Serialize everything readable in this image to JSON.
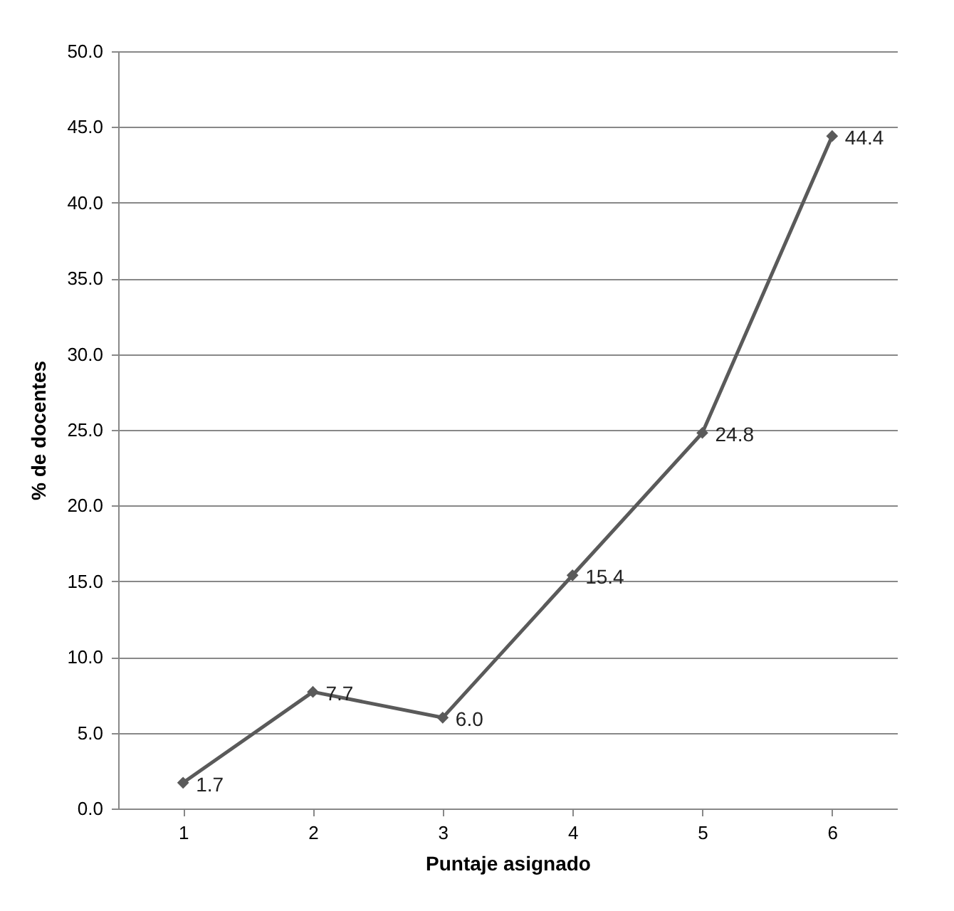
{
  "chart_data": {
    "type": "line",
    "xlabel": "Puntaje asignado",
    "ylabel": "% de docentes",
    "categories": [
      "1",
      "2",
      "3",
      "4",
      "5",
      "6"
    ],
    "series": [
      {
        "color": "#5a5a5a",
        "values": [
          1.7,
          7.7,
          6.0,
          15.4,
          24.8,
          44.4
        ],
        "value_labels": [
          "1.7",
          "7.7",
          "6.0",
          "15.4",
          "24.8",
          "44.4"
        ]
      }
    ],
    "ylim": [
      0,
      50
    ],
    "yticks": [
      {
        "value": 0,
        "label": "0.0"
      },
      {
        "value": 5,
        "label": "5.0"
      },
      {
        "value": 10,
        "label": "10.0"
      },
      {
        "value": 15,
        "label": "15.0"
      },
      {
        "value": 20,
        "label": "20.0"
      },
      {
        "value": 25,
        "label": "25.0"
      },
      {
        "value": 30,
        "label": "30.0"
      },
      {
        "value": 35,
        "label": "35.0"
      },
      {
        "value": 40,
        "label": "40.0"
      },
      {
        "value": 45,
        "label": "45.0"
      },
      {
        "value": 50,
        "label": "50.0"
      }
    ],
    "grid": "y",
    "marker": "diamond",
    "line_style": "solid"
  }
}
